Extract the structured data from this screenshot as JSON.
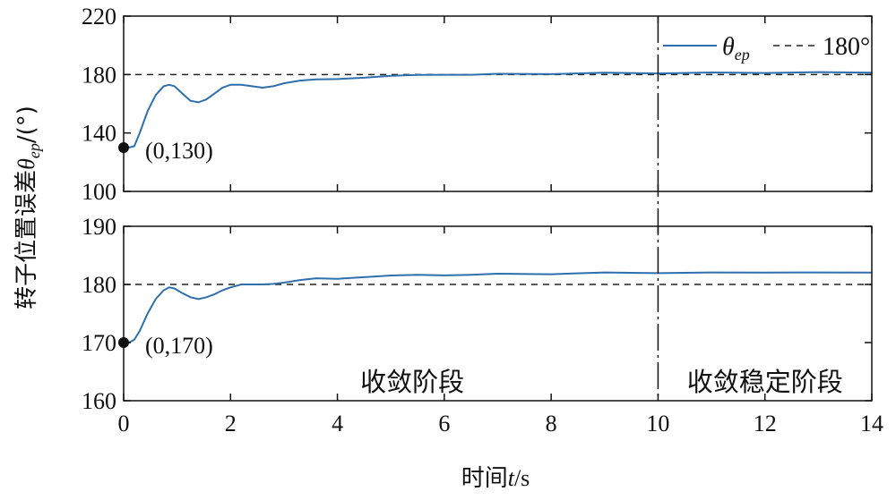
{
  "chart_data": [
    {
      "type": "line",
      "panel": "top",
      "ylim": [
        100,
        220
      ],
      "yticks": [
        100,
        140,
        180,
        220
      ],
      "xlim": [
        0,
        14
      ],
      "reference_value": 180,
      "series": [
        {
          "name": "θep",
          "x": [
            0,
            0.1,
            0.2,
            0.3,
            0.45,
            0.6,
            0.75,
            0.85,
            0.95,
            1.1,
            1.25,
            1.4,
            1.55,
            1.7,
            1.85,
            2.0,
            2.2,
            2.4,
            2.6,
            2.8,
            3.0,
            3.3,
            3.6,
            4.0,
            4.5,
            5.0,
            5.5,
            6.0,
            6.5,
            7.0,
            8.0,
            9.0,
            10.0,
            11.0,
            12.0,
            13.0,
            14.0
          ],
          "y": [
            130,
            130,
            131,
            140,
            155,
            166,
            172,
            173,
            172,
            167,
            162,
            161,
            163,
            167,
            171,
            173,
            173,
            172,
            171,
            172,
            174,
            176,
            176.5,
            177,
            178,
            179,
            179.5,
            180,
            180,
            180.3,
            180.5,
            181,
            181,
            181.2,
            181.3,
            181.4,
            181.5
          ]
        }
      ],
      "annotation": "(0,130)",
      "legend": {
        "series_label": "θ",
        "series_subscript": "ep",
        "reference_label": "180°",
        "position": "top-right"
      }
    },
    {
      "type": "line",
      "panel": "bottom",
      "ylim": [
        160,
        190
      ],
      "yticks": [
        160,
        170,
        180,
        190
      ],
      "xlim": [
        0,
        14
      ],
      "xticks": [
        0,
        2,
        4,
        6,
        8,
        10,
        12,
        14
      ],
      "reference_value": 180,
      "series": [
        {
          "name": "θep",
          "x": [
            0,
            0.1,
            0.2,
            0.3,
            0.45,
            0.6,
            0.75,
            0.85,
            0.95,
            1.1,
            1.25,
            1.4,
            1.55,
            1.7,
            1.85,
            2.0,
            2.2,
            2.4,
            2.6,
            2.8,
            3.0,
            3.3,
            3.6,
            4.0,
            4.5,
            5.0,
            5.5,
            6.0,
            6.5,
            7.0,
            8.0,
            9.0,
            10.0,
            11.0,
            12.0,
            13.0,
            14.0
          ],
          "y": [
            170,
            170,
            170.5,
            172,
            175,
            177.5,
            179,
            179.5,
            179.3,
            178.5,
            177.8,
            177.5,
            177.8,
            178.3,
            179,
            179.5,
            180,
            180,
            180,
            180.1,
            180.3,
            180.8,
            181,
            181,
            181.3,
            181.5,
            181.6,
            181.6,
            181.7,
            181.8,
            181.8,
            182,
            182,
            182,
            182.1,
            182,
            182.1
          ]
        }
      ],
      "annotation": "(0,170)"
    }
  ],
  "phase_divider_x": 10,
  "phase_labels": {
    "left": "收敛阶段",
    "right": "收敛稳定阶段"
  },
  "xlabel": {
    "text": "时间",
    "italic": "t",
    "unit": "/s"
  },
  "ylabel": {
    "text": "转子位置误差",
    "italic": "θ",
    "subscript": "ep",
    "unit": "/(°)"
  },
  "colors": {
    "series": "#2e6fae",
    "reference": "#222222",
    "axis": "#111111"
  }
}
